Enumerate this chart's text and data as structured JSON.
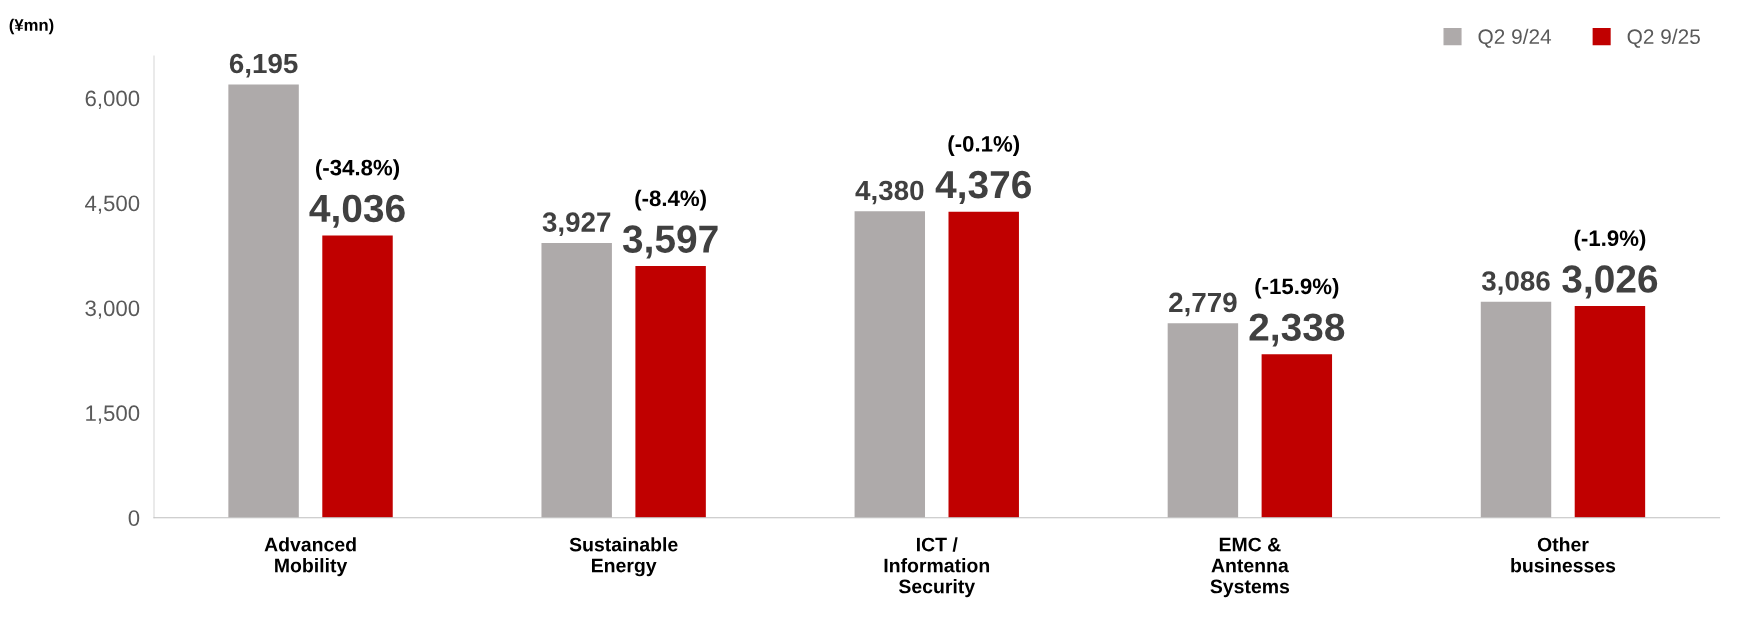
{
  "chart_data": {
    "type": "bar",
    "ylabel": "(¥mn)",
    "categories": [
      "Advanced\nMobility",
      "Sustainable\nEnergy",
      "ICT /\nInformation\nSecurity",
      "EMC &\nAntenna\nSystems",
      "Other\nbusinesses"
    ],
    "series": [
      {
        "name": "Q2 9/24",
        "color": "#aeaaaa",
        "values": [
          6195,
          3927,
          4380,
          2779,
          3086
        ],
        "value_labels": [
          "6,195",
          "3,927",
          "4,380",
          "2,779",
          "3,086"
        ]
      },
      {
        "name": "Q2 9/25",
        "color": "#c00000",
        "values": [
          4036,
          3597,
          4376,
          2338,
          3026
        ],
        "value_labels": [
          "4,036",
          "3,597",
          "4,376",
          "2,338",
          "3,026"
        ]
      }
    ],
    "annotations": [
      "(-34.8%)",
      "(-8.4%)",
      "(-0.1%)",
      "(-15.9%)",
      "(-1.9%)"
    ],
    "ylim": [
      0,
      6600
    ],
    "yticks": [
      {
        "value": 0,
        "label": "0"
      },
      {
        "value": 1500,
        "label": "1,500"
      },
      {
        "value": 3000,
        "label": "3,000"
      },
      {
        "value": 4500,
        "label": "4,500"
      },
      {
        "value": 6000,
        "label": "6,000"
      }
    ],
    "grid": false,
    "legend": "top right"
  }
}
